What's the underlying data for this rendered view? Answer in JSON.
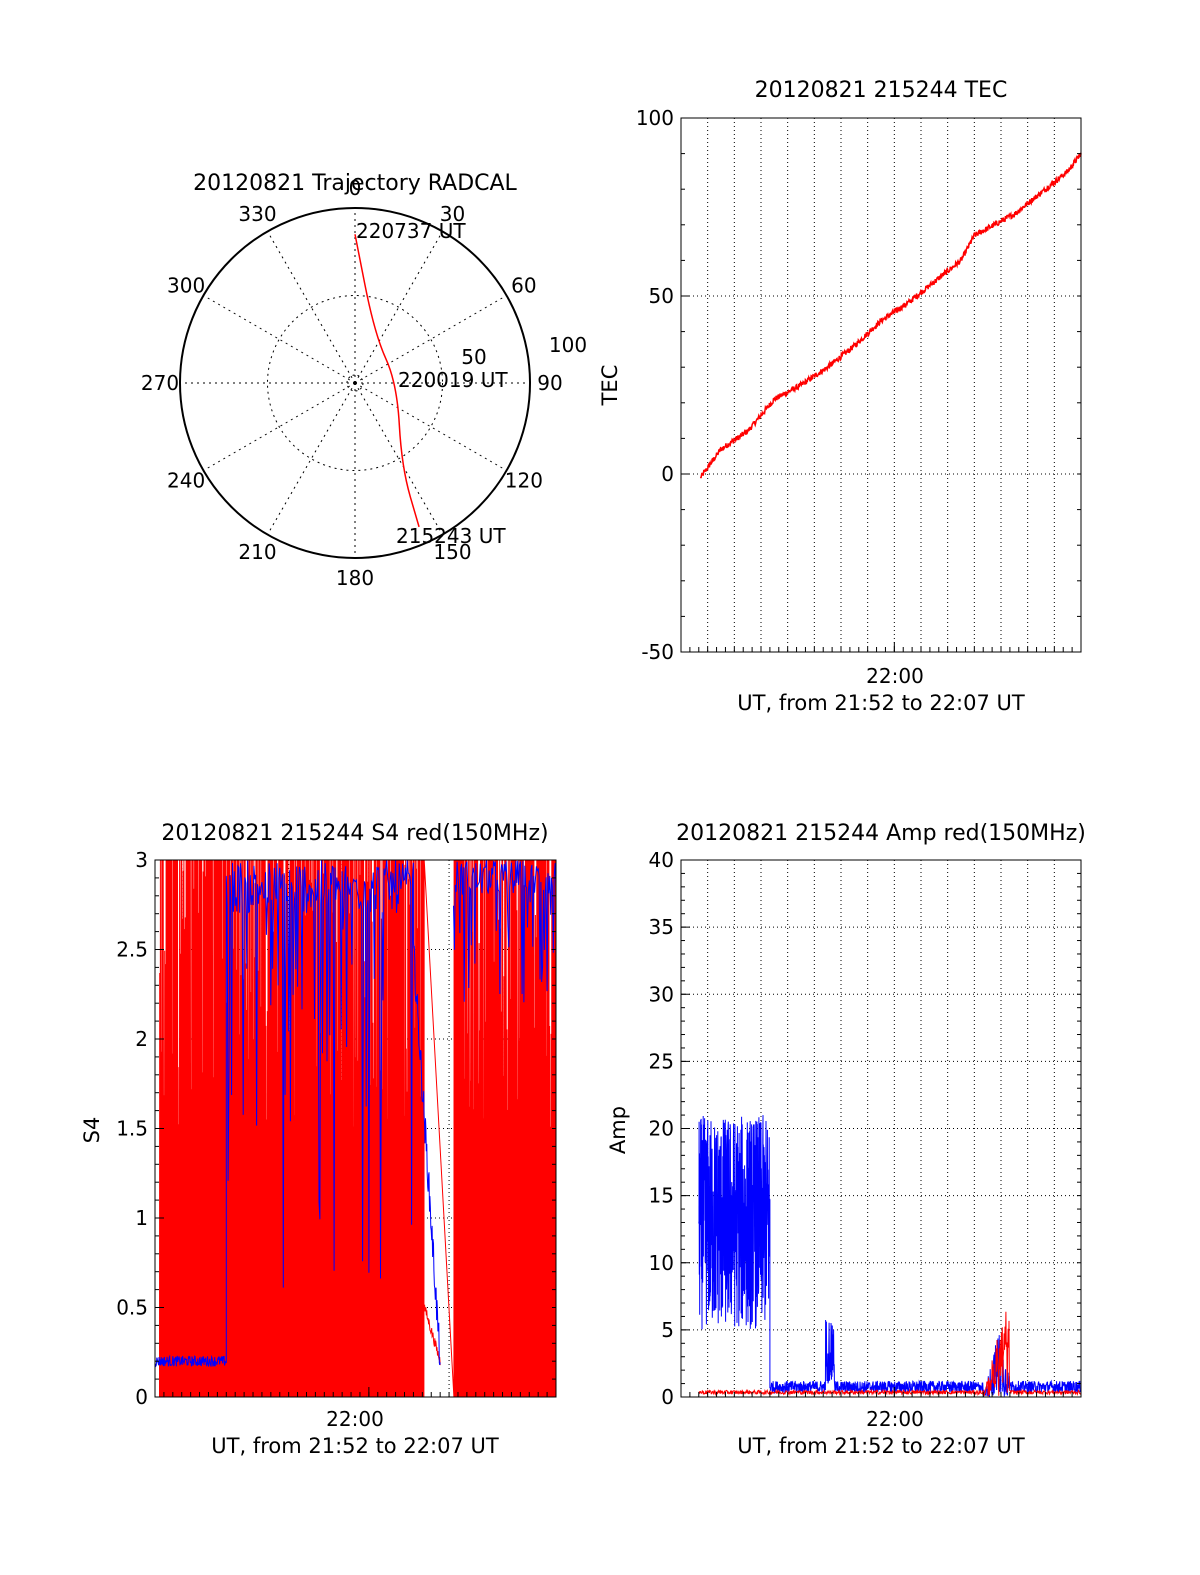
{
  "colors": {
    "red": "#ff0000",
    "blue": "#0000ff",
    "grid": "#000000",
    "background": "#ffffff"
  },
  "chart_data": [
    {
      "id": "trajectory",
      "type": "polar",
      "title": "20120821 Trajectory RADCAL",
      "angle_labels": [
        "0",
        "30",
        "60",
        "90",
        "120",
        "150",
        "180",
        "210",
        "240",
        "270",
        "300",
        "330"
      ],
      "radius_labels": [
        "50",
        "100"
      ],
      "radius_max": 100,
      "grid": "dotted",
      "series": [
        {
          "color": "red",
          "points": [
            {
              "az": 0,
              "r": 85
            },
            {
              "az": 22,
              "r": 30
            },
            {
              "az": 90,
              "r": 24
            },
            {
              "az": 151,
              "r": 55
            },
            {
              "az": 156,
              "r": 90
            }
          ]
        }
      ],
      "annotations": [
        {
          "text": "220737 UT",
          "az": 0,
          "r": 85
        },
        {
          "text": "220019 UT",
          "az": 90,
          "r": 24
        },
        {
          "text": "215243 UT",
          "az": 156,
          "r": 90
        }
      ]
    },
    {
      "id": "tec",
      "type": "line",
      "title": "20120821 215244 TEC",
      "xlabel": "UT, from 21:52 to 22:07 UT",
      "ylabel": "TEC",
      "xlim": [
        "21:52:00",
        "22:07:00"
      ],
      "ylim": [
        -50,
        100
      ],
      "yticks": [
        "-50",
        "0",
        "50",
        "100"
      ],
      "xtick_labels": [
        {
          "t": "22:00:00",
          "label": "22:00"
        }
      ],
      "grid": true,
      "series": [
        {
          "color": "red",
          "x": [
            "21:52:44",
            "21:53:30",
            "21:54:30",
            "21:55:30",
            "21:56:30",
            "21:57:30",
            "21:58:30",
            "21:59:30",
            "22:00:30",
            "22:01:30",
            "22:02:30",
            "22:03:00",
            "22:03:30",
            "22:04:30",
            "22:05:30",
            "22:06:30",
            "22:07:00"
          ],
          "y": [
            -1,
            7,
            12,
            21,
            25,
            30,
            36,
            43,
            48,
            54,
            60,
            67,
            69,
            73,
            79,
            85,
            90
          ]
        }
      ]
    },
    {
      "id": "s4",
      "type": "line",
      "title": "20120821 215244 S4 red(150MHz)",
      "xlabel": "UT, from 21:52 to 22:07 UT",
      "ylabel": "S4",
      "xlim": [
        "21:52:00",
        "22:07:00"
      ],
      "ylim": [
        0,
        3
      ],
      "yticks": [
        "0",
        "0.5",
        "1",
        "1.5",
        "2",
        "2.5",
        "3"
      ],
      "xtick_labels": [
        {
          "t": "22:00:00",
          "label": "22:00"
        }
      ],
      "grid": true,
      "series": [
        {
          "color": "red",
          "pattern": "dense oscillation between 0 and 3 from 21:52:10 to 22:07:00, gap 22:02:40-22:03:10, tail decreasing 0.5 to 0.2 near 22:02:10-22:02:40"
        },
        {
          "color": "blue",
          "pattern": "about 0.2 from 21:52:00 to 21:54:40, then mostly near 3 with dips until 22:01:40, decreasing to 0.2 at 22:02:40, near 3 after 22:03:10"
        }
      ]
    },
    {
      "id": "amp",
      "type": "line",
      "title": "20120821 215244 Amp red(150MHz)",
      "xlabel": "UT, from 21:52 to 22:07 UT",
      "ylabel": "Amp",
      "xlim": [
        "21:52:00",
        "22:07:00"
      ],
      "ylim": [
        0,
        40
      ],
      "yticks": [
        "0",
        "5",
        "10",
        "15",
        "20",
        "25",
        "30",
        "35",
        "40"
      ],
      "xtick_labels": [
        {
          "t": "22:00:00",
          "label": "22:00"
        }
      ],
      "grid": true,
      "series": [
        {
          "color": "blue",
          "pattern": "noisy 5-22 from 21:52:40 to 21:55:20, then about 0.5 with bursts to 6 at 21:57:30 and to 5 at 22:03:40"
        },
        {
          "color": "red",
          "pattern": "about 0.3 throughout, peak about 7 near 22:04:10"
        }
      ]
    }
  ]
}
